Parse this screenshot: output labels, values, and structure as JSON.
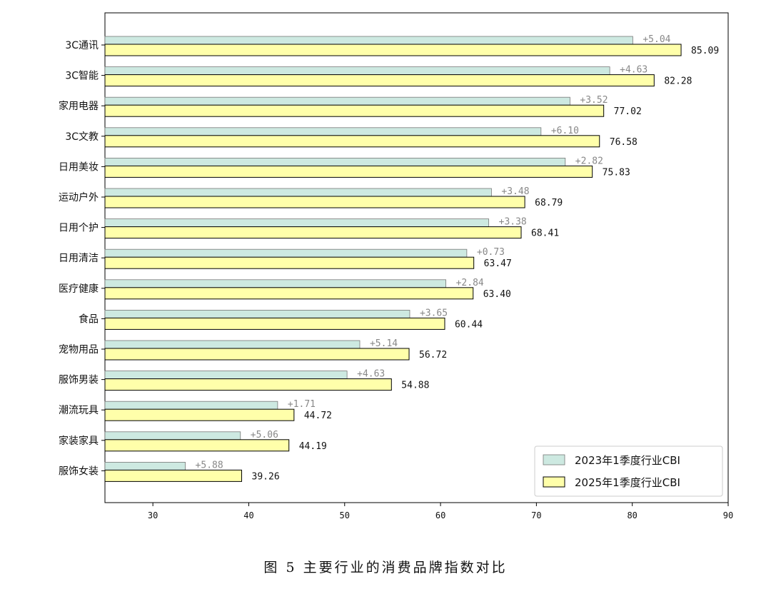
{
  "chart_data": {
    "type": "bar",
    "orientation": "horizontal",
    "categories": [
      "3C通讯",
      "3C智能",
      "家用电器",
      "3C文教",
      "日用美妆",
      "运动户外",
      "日用个护",
      "日用清洁",
      "医疗健康",
      "食品",
      "宠物用品",
      "服饰男装",
      "潮流玩具",
      "家装家具",
      "服饰女装"
    ],
    "series": [
      {
        "name": "2023年1季度行业CBI",
        "color": "#cde9e1",
        "values": [
          80.05,
          77.65,
          73.5,
          70.48,
          73.01,
          65.31,
          65.03,
          62.74,
          60.56,
          56.79,
          51.58,
          50.25,
          43.01,
          39.13,
          33.38
        ]
      },
      {
        "name": "2025年1季度行业CBI",
        "color": "#ffffaa",
        "values": [
          85.09,
          82.28,
          77.02,
          76.58,
          75.83,
          68.79,
          68.41,
          63.47,
          63.4,
          60.44,
          56.72,
          54.88,
          44.72,
          44.19,
          39.26
        ]
      }
    ],
    "value_labels": [
      "85.09",
      "82.28",
      "77.02",
      "76.58",
      "75.83",
      "68.79",
      "68.41",
      "63.47",
      "63.40",
      "60.44",
      "56.72",
      "54.88",
      "44.72",
      "44.19",
      "39.26"
    ],
    "diff_labels": [
      "+5.04",
      "+4.63",
      "+3.52",
      "+6.10",
      "+2.82",
      "+3.48",
      "+3.38",
      "+0.73",
      "+2.84",
      "+3.65",
      "+5.14",
      "+4.63",
      "+1.71",
      "+5.06",
      "+5.88"
    ],
    "xlim": [
      25,
      90
    ],
    "xticks": [
      30,
      40,
      50,
      60,
      70,
      80,
      90
    ],
    "grid": false,
    "legend_position": "bottom-right"
  },
  "caption": "图 5 主要行业的消费品牌指数对比"
}
